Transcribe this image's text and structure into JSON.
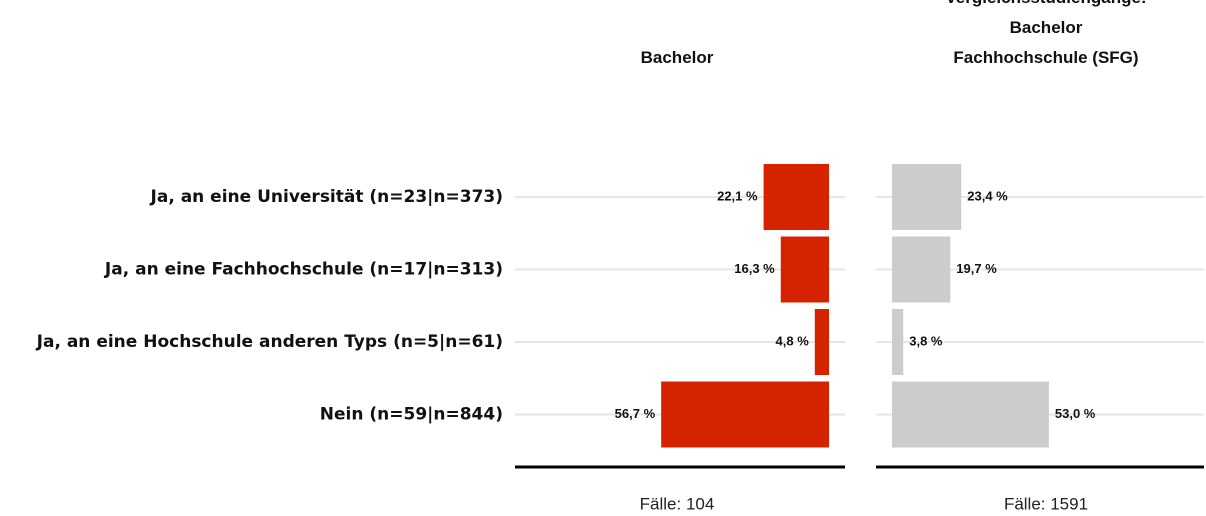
{
  "chart_data": {
    "type": "bar",
    "categories": [
      "Ja, an eine Universität (n=23|n=373)",
      "Ja, an eine Fachhochschule (n=17|n=313)",
      "Ja, an eine Hochschule anderen Typs (n=5|n=61)",
      "Nein (n=59|n=844)"
    ],
    "xlim": [
      0,
      100
    ],
    "series": [
      {
        "name": "Bachelor",
        "color": "#d52300",
        "direction": "left",
        "values": [
          22.1,
          16.3,
          4.8,
          56.7
        ],
        "value_labels": [
          "22,1 %",
          "16,3 %",
          "4,8 %",
          "56,7 %"
        ],
        "note": "Fälle: 104"
      },
      {
        "name": "Vergleichsstudiengänge:\nBachelor\nFachhochschule (SFG)",
        "color": "#cccccc",
        "direction": "right",
        "values": [
          23.4,
          19.7,
          3.8,
          53.0
        ],
        "value_labels": [
          "23,4 %",
          "19,7 %",
          "3,8 %",
          "53,0 %"
        ],
        "note": "Fälle: 1591"
      }
    ]
  }
}
